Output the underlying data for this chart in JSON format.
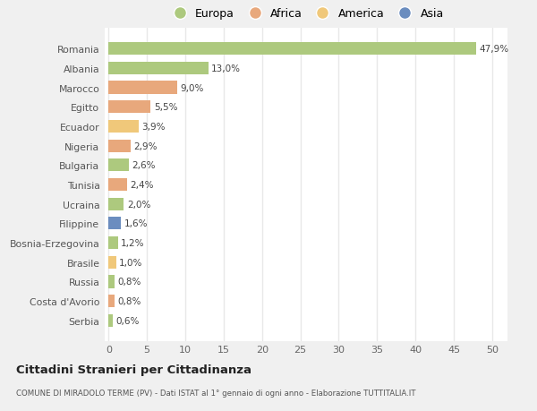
{
  "countries": [
    "Romania",
    "Albania",
    "Marocco",
    "Egitto",
    "Ecuador",
    "Nigeria",
    "Bulgaria",
    "Tunisia",
    "Ucraina",
    "Filippine",
    "Bosnia-Erzegovina",
    "Brasile",
    "Russia",
    "Costa d'Avorio",
    "Serbia"
  ],
  "values": [
    47.9,
    13.0,
    9.0,
    5.5,
    3.9,
    2.9,
    2.6,
    2.4,
    2.0,
    1.6,
    1.2,
    1.0,
    0.8,
    0.8,
    0.6
  ],
  "labels": [
    "47,9%",
    "13,0%",
    "9,0%",
    "5,5%",
    "3,9%",
    "2,9%",
    "2,6%",
    "2,4%",
    "2,0%",
    "1,6%",
    "1,2%",
    "1,0%",
    "0,8%",
    "0,8%",
    "0,6%"
  ],
  "continents": [
    "Europa",
    "Europa",
    "Africa",
    "Africa",
    "America",
    "Africa",
    "Europa",
    "Africa",
    "Europa",
    "Asia",
    "Europa",
    "America",
    "Europa",
    "Africa",
    "Europa"
  ],
  "colors": {
    "Europa": "#adc97e",
    "Africa": "#e8a87c",
    "America": "#f0c87a",
    "Asia": "#6b8dbf"
  },
  "legend_order": [
    "Europa",
    "Africa",
    "America",
    "Asia"
  ],
  "background_color": "#f0f0f0",
  "plot_background": "#ffffff",
  "title": "Cittadini Stranieri per Cittadinanza",
  "subtitle": "COMUNE DI MIRADOLO TERME (PV) - Dati ISTAT al 1° gennaio di ogni anno - Elaborazione TUTTITALIA.IT",
  "xlim": [
    -0.5,
    52
  ],
  "xticks": [
    0,
    5,
    10,
    15,
    20,
    25,
    30,
    35,
    40,
    45,
    50
  ],
  "grid_color": "#e8e8e8",
  "bar_height": 0.65
}
